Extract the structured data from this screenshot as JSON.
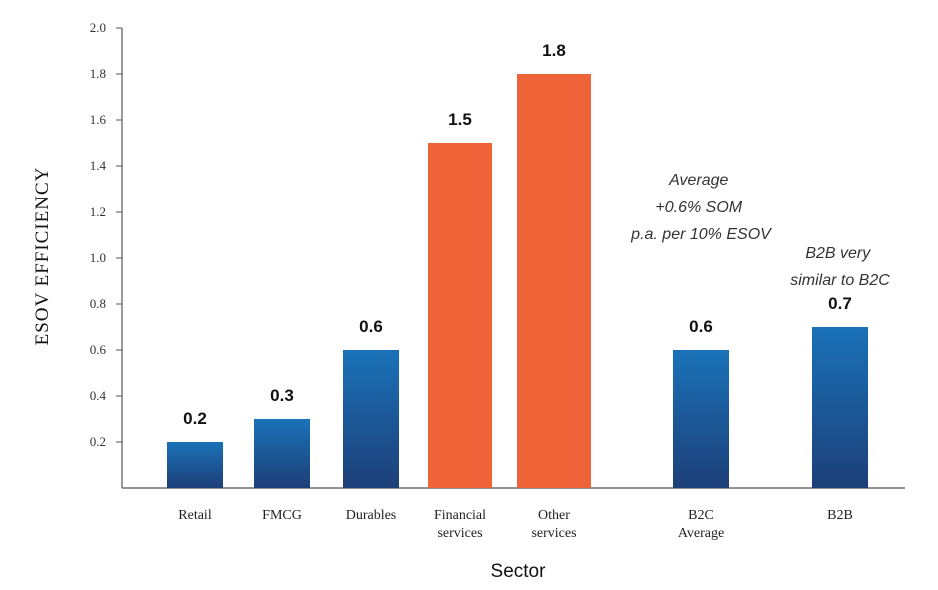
{
  "chart_data": {
    "type": "bar",
    "title": "",
    "xlabel": "Sector",
    "ylabel": "ESOV EFFICIENCY",
    "ylim": [
      0,
      2.0
    ],
    "yticks": [
      "2.0",
      "1.8",
      "1.6",
      "1.4",
      "1.2",
      "1.0",
      "0.8",
      "0.6",
      "0.4",
      "0.2"
    ],
    "categories": [
      [
        "Retail"
      ],
      [
        "FMCG"
      ],
      [
        "Durables"
      ],
      [
        "Financial",
        "services"
      ],
      [
        "Other",
        "services"
      ],
      [
        "B2C",
        "Average"
      ],
      [
        "B2B"
      ]
    ],
    "values": [
      0.2,
      0.3,
      0.6,
      1.5,
      1.8,
      0.6,
      0.7
    ],
    "value_labels": [
      "0.2",
      "0.3",
      "0.6",
      "1.5",
      "1.8",
      "0.6",
      "0.7"
    ],
    "highlight": [
      false,
      false,
      false,
      true,
      true,
      false,
      false
    ],
    "annotations": {
      "average_note": [
        "Average",
        "+0.6% SOM",
        "p.a. per 10% ESOV"
      ],
      "b2b_note": [
        "B2B very",
        "similar to B2C"
      ]
    },
    "colors": {
      "blue_top": "#1a72b8",
      "blue_bottom": "#1d3f78",
      "orange": "#ee6438",
      "axis": "#555555"
    },
    "grid": false
  }
}
